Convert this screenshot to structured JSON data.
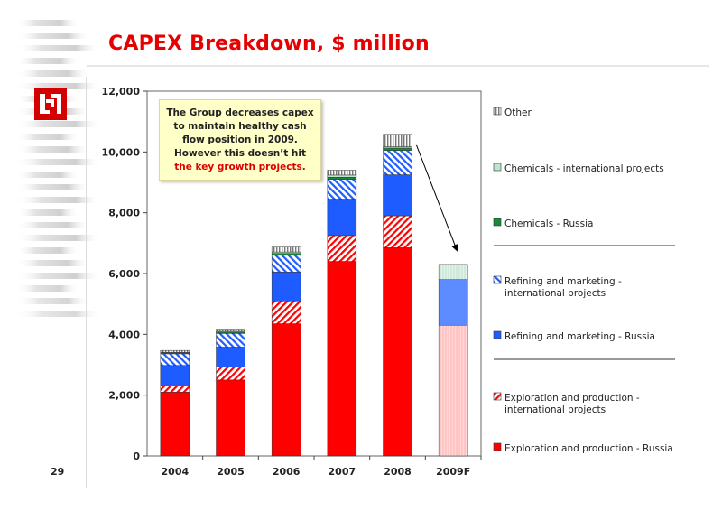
{
  "slide": {
    "title": "CAPEX Breakdown, $ million",
    "page_number": "29",
    "logo_icon": "lukoil-logo-icon",
    "accent_color": "#e60000"
  },
  "callout": {
    "line1": "The Group decreases capex",
    "line2": "to maintain healthy cash",
    "line3": "flow position in 2009.",
    "line4": "However this doesn’t hit",
    "line5": "the key growth projects."
  },
  "chart_data": {
    "type": "bar",
    "stacked": true,
    "title": "CAPEX Breakdown, $ million",
    "xlabel": "",
    "ylabel": "",
    "categories": [
      "2004",
      "2005",
      "2006",
      "2007",
      "2008",
      "2009F"
    ],
    "ylim": [
      0,
      12000
    ],
    "yticks": [
      "0",
      "2,000",
      "4,000",
      "6,000",
      "8,000",
      "10,000",
      "12,000"
    ],
    "grid": false,
    "legend_position": "right",
    "series": [
      {
        "name": "Exploration and production - Russia",
        "color": "#ff0000",
        "pattern": "solid",
        "values": [
          2100,
          2500,
          4350,
          6400,
          6850,
          4300
        ]
      },
      {
        "name": "Exploration and production - international projects",
        "color": "#ff0000",
        "pattern": "hatch",
        "values": [
          200,
          430,
          750,
          850,
          1050,
          0
        ]
      },
      {
        "name": "Refining and marketing - Russia",
        "color": "#1f5cff",
        "pattern": "solid",
        "values": [
          680,
          650,
          950,
          1200,
          1350,
          1500
        ]
      },
      {
        "name": "Refining and marketing - international projects",
        "color": "#1f5cff",
        "pattern": "hatch",
        "values": [
          380,
          450,
          550,
          650,
          800,
          0
        ]
      },
      {
        "name": "Chemicals - Russia",
        "color": "#1a8a3a",
        "pattern": "solid",
        "values": [
          30,
          40,
          60,
          70,
          80,
          0
        ]
      },
      {
        "name": "Chemicals - international projects",
        "color": "#bfe3cf",
        "pattern": "solid",
        "values": [
          20,
          30,
          50,
          70,
          40,
          500
        ]
      },
      {
        "name": "Other",
        "color": "#8c8c8c",
        "pattern": "hatch",
        "values": [
          60,
          70,
          160,
          160,
          410,
          0
        ]
      }
    ],
    "annotations": [
      {
        "type": "arrow",
        "from_category": "2008",
        "to_category": "2009F"
      }
    ]
  }
}
